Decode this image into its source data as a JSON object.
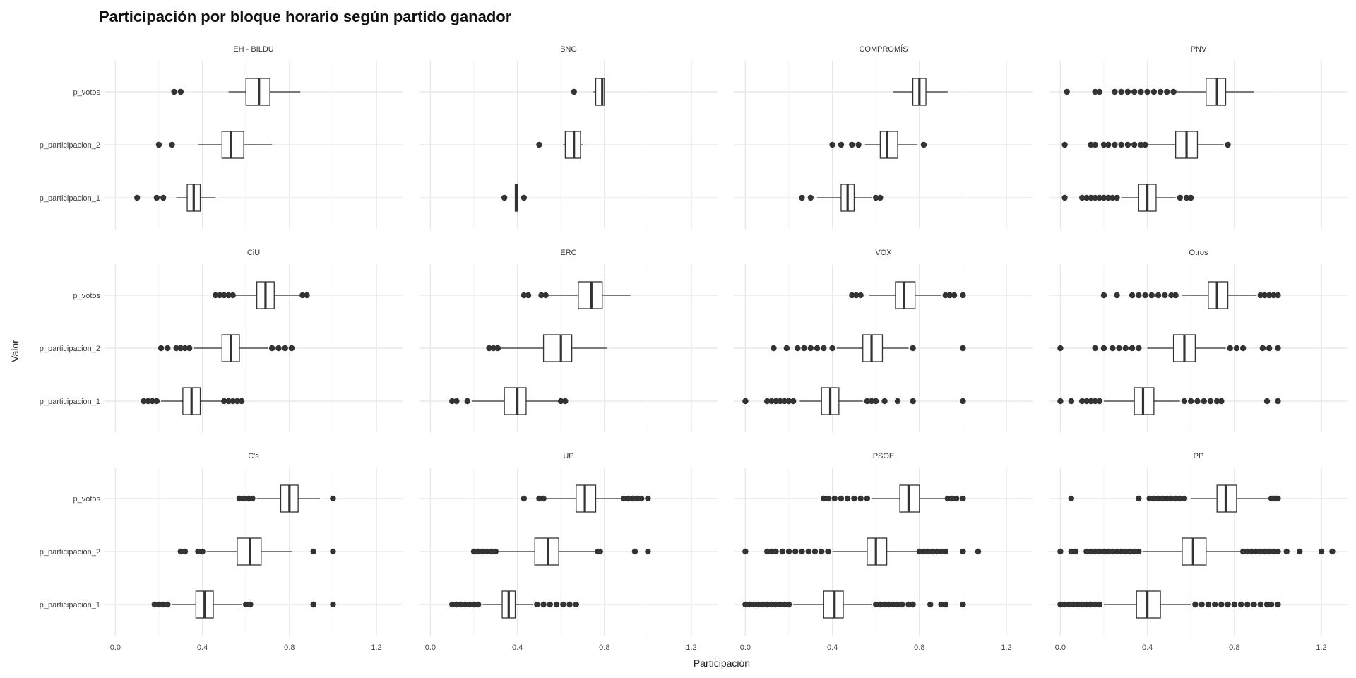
{
  "chart_data": {
    "type": "boxplot",
    "title": "Participación por bloque horario según partido ganador",
    "xlabel": "Participación",
    "ylabel": "Valor",
    "xlim": [
      -0.05,
      1.32
    ],
    "x_ticks": [
      0.0,
      0.4,
      0.8,
      1.2
    ],
    "x_tick_labels": [
      "0.0",
      "0.4",
      "0.8",
      "1.2"
    ],
    "categories": [
      "p_participacion_1",
      "p_participacion_2",
      "p_votos"
    ],
    "grid": true,
    "colors": {
      "box_fill": "#ffffff",
      "box_stroke": "#333333",
      "outlier": "#333333",
      "grid": "#e8e8e8"
    },
    "panels": [
      {
        "name": "EH - BILDU",
        "boxes": [
          {
            "category": "p_participacion_1",
            "whisker_low": 0.28,
            "q1": 0.33,
            "median": 0.36,
            "q3": 0.39,
            "whisker_high": 0.46,
            "outliers": [
              0.1,
              0.19,
              0.22
            ]
          },
          {
            "category": "p_participacion_2",
            "whisker_low": 0.38,
            "q1": 0.49,
            "median": 0.53,
            "q3": 0.59,
            "whisker_high": 0.72,
            "outliers": [
              0.2,
              0.26
            ]
          },
          {
            "category": "p_votos",
            "whisker_low": 0.52,
            "q1": 0.6,
            "median": 0.66,
            "q3": 0.71,
            "whisker_high": 0.85,
            "outliers": [
              0.27,
              0.3
            ]
          }
        ]
      },
      {
        "name": "BNG",
        "boxes": [
          {
            "category": "p_participacion_1",
            "whisker_low": 0.39,
            "q1": 0.39,
            "median": 0.395,
            "q3": 0.4,
            "whisker_high": 0.4,
            "outliers": [
              0.34,
              0.43
            ]
          },
          {
            "category": "p_participacion_2",
            "whisker_low": 0.61,
            "q1": 0.62,
            "median": 0.66,
            "q3": 0.69,
            "whisker_high": 0.7,
            "outliers": [
              0.5
            ]
          },
          {
            "category": "p_votos",
            "whisker_low": 0.75,
            "q1": 0.76,
            "median": 0.79,
            "q3": 0.8,
            "whisker_high": 0.8,
            "outliers": [
              0.66
            ]
          }
        ]
      },
      {
        "name": "COMPROMÍS",
        "boxes": [
          {
            "category": "p_participacion_1",
            "whisker_low": 0.33,
            "q1": 0.44,
            "median": 0.47,
            "q3": 0.5,
            "whisker_high": 0.58,
            "outliers": [
              0.26,
              0.3,
              0.6,
              0.62
            ]
          },
          {
            "category": "p_participacion_2",
            "whisker_low": 0.55,
            "q1": 0.62,
            "median": 0.65,
            "q3": 0.7,
            "whisker_high": 0.79,
            "outliers": [
              0.4,
              0.44,
              0.49,
              0.52,
              0.82
            ]
          },
          {
            "category": "p_votos",
            "whisker_low": 0.68,
            "q1": 0.77,
            "median": 0.8,
            "q3": 0.83,
            "whisker_high": 0.93,
            "outliers": []
          }
        ]
      },
      {
        "name": "PNV",
        "boxes": [
          {
            "category": "p_participacion_1",
            "whisker_low": 0.28,
            "q1": 0.36,
            "median": 0.4,
            "q3": 0.44,
            "whisker_high": 0.53,
            "outliers": [
              0.02,
              0.1,
              0.12,
              0.14,
              0.16,
              0.18,
              0.2,
              0.22,
              0.24,
              0.26,
              0.55,
              0.58,
              0.6
            ]
          },
          {
            "category": "p_participacion_2",
            "whisker_low": 0.4,
            "q1": 0.53,
            "median": 0.58,
            "q3": 0.63,
            "whisker_high": 0.75,
            "outliers": [
              0.02,
              0.14,
              0.16,
              0.2,
              0.22,
              0.25,
              0.28,
              0.31,
              0.34,
              0.37,
              0.39,
              0.77
            ]
          },
          {
            "category": "p_votos",
            "whisker_low": 0.53,
            "q1": 0.67,
            "median": 0.72,
            "q3": 0.76,
            "whisker_high": 0.89,
            "outliers": [
              0.03,
              0.16,
              0.18,
              0.25,
              0.28,
              0.31,
              0.34,
              0.37,
              0.4,
              0.43,
              0.46,
              0.49,
              0.52
            ]
          }
        ]
      },
      {
        "name": "CiU",
        "boxes": [
          {
            "category": "p_participacion_1",
            "whisker_low": 0.21,
            "q1": 0.31,
            "median": 0.35,
            "q3": 0.39,
            "whisker_high": 0.49,
            "outliers": [
              0.13,
              0.15,
              0.17,
              0.19,
              0.5,
              0.52,
              0.54,
              0.56,
              0.58
            ]
          },
          {
            "category": "p_participacion_2",
            "whisker_low": 0.36,
            "q1": 0.49,
            "median": 0.53,
            "q3": 0.57,
            "whisker_high": 0.7,
            "outliers": [
              0.21,
              0.24,
              0.28,
              0.3,
              0.32,
              0.34,
              0.72,
              0.75,
              0.78,
              0.81
            ]
          },
          {
            "category": "p_votos",
            "whisker_low": 0.55,
            "q1": 0.65,
            "median": 0.69,
            "q3": 0.73,
            "whisker_high": 0.85,
            "outliers": [
              0.46,
              0.48,
              0.5,
              0.52,
              0.54,
              0.86,
              0.88
            ]
          }
        ]
      },
      {
        "name": "ERC",
        "boxes": [
          {
            "category": "p_participacion_1",
            "whisker_low": 0.19,
            "q1": 0.34,
            "median": 0.4,
            "q3": 0.44,
            "whisker_high": 0.59,
            "outliers": [
              0.1,
              0.12,
              0.17,
              0.6,
              0.62
            ]
          },
          {
            "category": "p_participacion_2",
            "whisker_low": 0.32,
            "q1": 0.52,
            "median": 0.6,
            "q3": 0.65,
            "whisker_high": 0.81,
            "outliers": [
              0.27,
              0.29,
              0.31
            ]
          },
          {
            "category": "p_votos",
            "whisker_low": 0.53,
            "q1": 0.68,
            "median": 0.74,
            "q3": 0.79,
            "whisker_high": 0.92,
            "outliers": [
              0.43,
              0.45,
              0.51,
              0.53
            ]
          }
        ]
      },
      {
        "name": "VOX",
        "boxes": [
          {
            "category": "p_participacion_1",
            "whisker_low": 0.25,
            "q1": 0.35,
            "median": 0.39,
            "q3": 0.43,
            "whisker_high": 0.54,
            "outliers": [
              0.0,
              0.1,
              0.12,
              0.14,
              0.16,
              0.18,
              0.2,
              0.22,
              0.56,
              0.58,
              0.6,
              0.64,
              0.7,
              0.77,
              1.0
            ]
          },
          {
            "category": "p_participacion_2",
            "whisker_low": 0.42,
            "q1": 0.54,
            "median": 0.58,
            "q3": 0.63,
            "whisker_high": 0.75,
            "outliers": [
              0.13,
              0.19,
              0.24,
              0.27,
              0.3,
              0.33,
              0.36,
              0.4,
              0.77,
              1.0
            ]
          },
          {
            "category": "p_votos",
            "whisker_low": 0.57,
            "q1": 0.69,
            "median": 0.73,
            "q3": 0.78,
            "whisker_high": 0.9,
            "outliers": [
              0.49,
              0.51,
              0.53,
              0.92,
              0.94,
              0.96,
              1.0
            ]
          }
        ]
      },
      {
        "name": "Otros",
        "boxes": [
          {
            "category": "p_participacion_1",
            "whisker_low": 0.2,
            "q1": 0.34,
            "median": 0.38,
            "q3": 0.43,
            "whisker_high": 0.55,
            "outliers": [
              0.0,
              0.05,
              0.1,
              0.12,
              0.14,
              0.16,
              0.18,
              0.57,
              0.6,
              0.63,
              0.66,
              0.69,
              0.72,
              0.74,
              0.95,
              1.0
            ]
          },
          {
            "category": "p_participacion_2",
            "whisker_low": 0.4,
            "q1": 0.52,
            "median": 0.57,
            "q3": 0.62,
            "whisker_high": 0.76,
            "outliers": [
              0.0,
              0.16,
              0.2,
              0.24,
              0.27,
              0.3,
              0.33,
              0.36,
              0.78,
              0.81,
              0.84,
              0.93,
              0.96,
              1.0
            ]
          },
          {
            "category": "p_votos",
            "whisker_low": 0.56,
            "q1": 0.68,
            "median": 0.72,
            "q3": 0.77,
            "whisker_high": 0.9,
            "outliers": [
              0.2,
              0.26,
              0.33,
              0.36,
              0.39,
              0.42,
              0.45,
              0.48,
              0.51,
              0.53,
              0.92,
              0.94,
              0.96,
              0.98,
              1.0
            ]
          }
        ]
      },
      {
        "name": "C's",
        "boxes": [
          {
            "category": "p_participacion_1",
            "whisker_low": 0.26,
            "q1": 0.37,
            "median": 0.41,
            "q3": 0.45,
            "whisker_high": 0.58,
            "outliers": [
              0.18,
              0.2,
              0.22,
              0.24,
              0.6,
              0.62,
              0.91,
              1.0
            ]
          },
          {
            "category": "p_participacion_2",
            "whisker_low": 0.42,
            "q1": 0.56,
            "median": 0.62,
            "q3": 0.67,
            "whisker_high": 0.81,
            "outliers": [
              0.3,
              0.32,
              0.38,
              0.4,
              0.91,
              1.0
            ]
          },
          {
            "category": "p_votos",
            "whisker_low": 0.65,
            "q1": 0.76,
            "median": 0.8,
            "q3": 0.84,
            "whisker_high": 0.94,
            "outliers": [
              0.57,
              0.59,
              0.61,
              0.63,
              1.0
            ]
          }
        ]
      },
      {
        "name": "UP",
        "boxes": [
          {
            "category": "p_participacion_1",
            "whisker_low": 0.24,
            "q1": 0.33,
            "median": 0.36,
            "q3": 0.39,
            "whisker_high": 0.47,
            "outliers": [
              0.1,
              0.12,
              0.14,
              0.16,
              0.18,
              0.2,
              0.22,
              0.49,
              0.52,
              0.55,
              0.58,
              0.61,
              0.64,
              0.67
            ]
          },
          {
            "category": "p_participacion_2",
            "whisker_low": 0.31,
            "q1": 0.48,
            "median": 0.54,
            "q3": 0.59,
            "whisker_high": 0.76,
            "outliers": [
              0.2,
              0.22,
              0.24,
              0.26,
              0.28,
              0.3,
              0.77,
              0.78,
              0.94,
              1.0
            ]
          },
          {
            "category": "p_votos",
            "whisker_low": 0.53,
            "q1": 0.67,
            "median": 0.71,
            "q3": 0.76,
            "whisker_high": 0.88,
            "outliers": [
              0.43,
              0.5,
              0.52,
              0.89,
              0.91,
              0.93,
              0.95,
              0.97,
              1.0
            ]
          }
        ]
      },
      {
        "name": "PSOE",
        "boxes": [
          {
            "category": "p_participacion_1",
            "whisker_low": 0.22,
            "q1": 0.36,
            "median": 0.41,
            "q3": 0.45,
            "whisker_high": 0.58,
            "outliers": [
              0.0,
              0.02,
              0.04,
              0.06,
              0.08,
              0.1,
              0.12,
              0.14,
              0.16,
              0.18,
              0.2,
              0.6,
              0.62,
              0.64,
              0.66,
              0.68,
              0.7,
              0.72,
              0.75,
              0.77,
              0.85,
              0.9,
              0.92,
              1.0
            ]
          },
          {
            "category": "p_participacion_2",
            "whisker_low": 0.4,
            "q1": 0.56,
            "median": 0.6,
            "q3": 0.65,
            "whisker_high": 0.79,
            "outliers": [
              0.0,
              0.1,
              0.12,
              0.14,
              0.17,
              0.2,
              0.23,
              0.26,
              0.29,
              0.32,
              0.35,
              0.38,
              0.8,
              0.82,
              0.84,
              0.86,
              0.88,
              0.9,
              0.92,
              1.0,
              1.07
            ]
          },
          {
            "category": "p_votos",
            "whisker_low": 0.58,
            "q1": 0.71,
            "median": 0.75,
            "q3": 0.8,
            "whisker_high": 0.92,
            "outliers": [
              0.36,
              0.38,
              0.41,
              0.44,
              0.47,
              0.5,
              0.53,
              0.56,
              0.93,
              0.95,
              0.97,
              1.0
            ]
          }
        ]
      },
      {
        "name": "PP",
        "boxes": [
          {
            "category": "p_participacion_1",
            "whisker_low": 0.2,
            "q1": 0.35,
            "median": 0.4,
            "q3": 0.46,
            "whisker_high": 0.6,
            "outliers": [
              0.0,
              0.02,
              0.04,
              0.06,
              0.08,
              0.1,
              0.12,
              0.14,
              0.16,
              0.18,
              0.62,
              0.65,
              0.68,
              0.71,
              0.74,
              0.77,
              0.8,
              0.83,
              0.86,
              0.89,
              0.92,
              0.95,
              0.97,
              1.0
            ]
          },
          {
            "category": "p_participacion_2",
            "whisker_low": 0.38,
            "q1": 0.56,
            "median": 0.61,
            "q3": 0.67,
            "whisker_high": 0.83,
            "outliers": [
              0.0,
              0.05,
              0.07,
              0.12,
              0.14,
              0.16,
              0.18,
              0.2,
              0.22,
              0.24,
              0.26,
              0.28,
              0.3,
              0.32,
              0.34,
              0.36,
              0.84,
              0.86,
              0.88,
              0.9,
              0.92,
              0.94,
              0.96,
              0.98,
              1.0,
              1.04,
              1.1,
              1.2,
              1.25
            ]
          },
          {
            "category": "p_votos",
            "whisker_low": 0.6,
            "q1": 0.72,
            "median": 0.76,
            "q3": 0.81,
            "whisker_high": 0.96,
            "outliers": [
              0.05,
              0.36,
              0.41,
              0.43,
              0.45,
              0.47,
              0.49,
              0.51,
              0.53,
              0.55,
              0.57,
              0.97,
              0.98,
              0.99,
              1.0
            ]
          }
        ]
      }
    ]
  }
}
